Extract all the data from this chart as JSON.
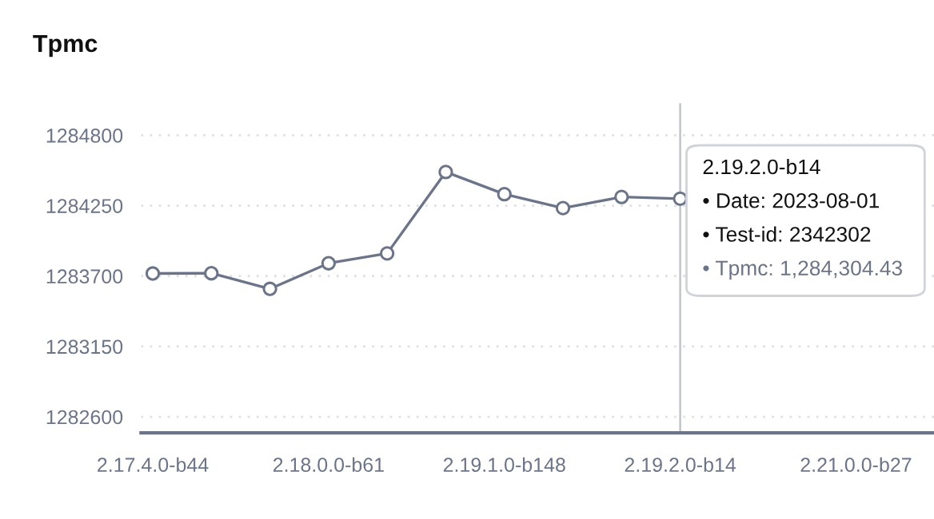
{
  "chart_data": {
    "type": "line",
    "title": "Tpmc",
    "categories": [
      "2.17.4.0-b44",
      null,
      null,
      "2.18.0.0-b61",
      null,
      null,
      "2.19.1.0-b148",
      null,
      null,
      "2.19.2.0-b14",
      null,
      null,
      "2.21.0.0-b27",
      null
    ],
    "series": [
      {
        "color": "#6b7488",
        "values": [
          1283720,
          1283722,
          1283600,
          1283800,
          1283877,
          1284513,
          1284340,
          1284231,
          1284318,
          1284304.43,
          null,
          null,
          null,
          null
        ]
      }
    ],
    "ylim": [
      1282475,
      1285050
    ],
    "yticks": [
      1282600,
      1283150,
      1283700,
      1284250,
      1284800
    ],
    "grid": "y",
    "marker": "circle",
    "line_style": "solid",
    "legend": false,
    "ref_lines": [
      {
        "axis": "x",
        "value": "2.19.2.0-b14",
        "label": null,
        "color": "#c0c4cc"
      }
    ],
    "annotations": [
      "2.19.2.0-b14",
      "• Date: 2023-08-01",
      "• Test-id: 2342302",
      "• Tpmc: 1,284,304.43"
    ]
  }
}
